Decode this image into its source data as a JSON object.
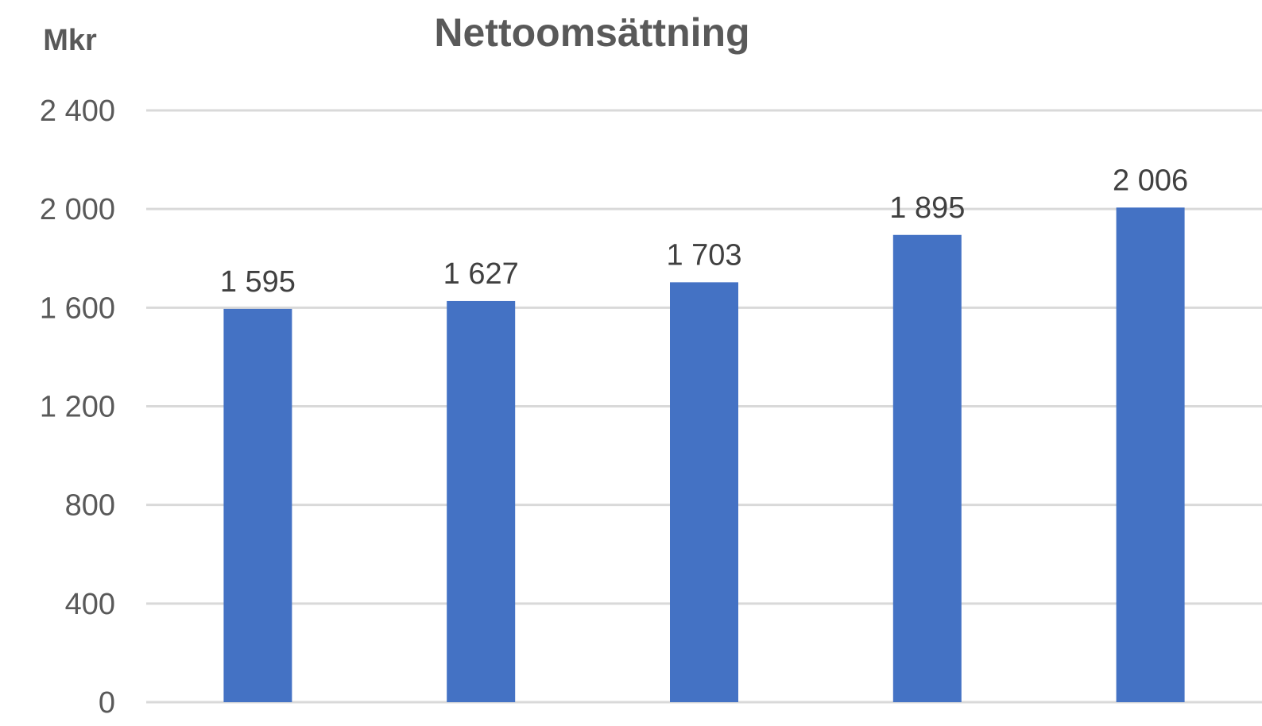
{
  "chart_data": {
    "type": "bar",
    "title": "Nettoomsättning",
    "ylabel": "Mkr",
    "xlabel": "",
    "categories": [
      "",
      "",
      "",
      "",
      ""
    ],
    "values": [
      1595,
      1627,
      1703,
      1895,
      2006
    ],
    "data_labels": [
      "1 595",
      "1 627",
      "1 703",
      "1 895",
      "2 006"
    ],
    "ylim": [
      0,
      2400
    ],
    "yticks": [
      0,
      400,
      800,
      1200,
      1600,
      2000,
      2400
    ],
    "ytick_labels": [
      "0",
      "400",
      "800",
      "1 200",
      "1 600",
      "2 000",
      "2 400"
    ],
    "grid": true,
    "legend": "none",
    "bar_color": "#4472c4"
  }
}
